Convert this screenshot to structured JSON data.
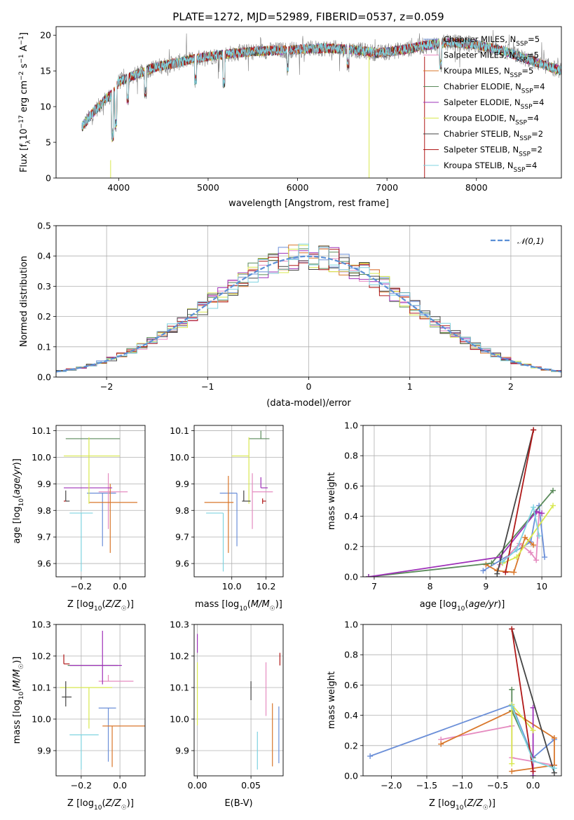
{
  "title": "PLATE=1272, MJD=52989, FIBERID=0537, z=0.059",
  "colors": {
    "Chabrier MILES": "#6b8fd8",
    "Salpeter MILES": "#e58bc0",
    "Kroupa MILES": "#d9772b",
    "Chabrier ELODIE": "#5a8a5a",
    "Salpeter ELODIE": "#9e30b8",
    "Kroupa ELODIE": "#d8e84e",
    "Chabrier STELIB": "#444444",
    "Salpeter STELIB": "#b01818",
    "Kroupa STELIB": "#7fd3e0",
    "data": "#808080",
    "normal": "#5b8fd6"
  },
  "spectrum": {
    "xlabel": "wavelength [Angstrom, rest frame]",
    "ylabel": "Flux [f_λ 10^-17 erg cm^-2 s^-1 A^-1]",
    "xlim": [
      3300,
      8950
    ],
    "ylim": [
      0,
      21.2
    ],
    "xticks": [
      4000,
      5000,
      6000,
      7000,
      8000
    ],
    "yticks": [
      0,
      5,
      10,
      15,
      20
    ],
    "legend": [
      {
        "model": "Chabrier MILES",
        "label": "Chabrier MILES, N",
        "sub": "SSP",
        "n": "=5"
      },
      {
        "model": "Salpeter MILES",
        "label": "Salpeter MILES, N",
        "sub": "SSP",
        "n": "=5"
      },
      {
        "model": "Kroupa MILES",
        "label": "Kroupa MILES, N",
        "sub": "SSP",
        "n": "=5"
      },
      {
        "model": "Chabrier ELODIE",
        "label": "Chabrier ELODIE, N",
        "sub": "SSP",
        "n": "=4"
      },
      {
        "model": "Salpeter ELODIE",
        "label": "Salpeter ELODIE, N",
        "sub": "SSP",
        "n": "=4"
      },
      {
        "model": "Kroupa ELODIE",
        "label": "Kroupa ELODIE, N",
        "sub": "SSP",
        "n": "=4"
      },
      {
        "model": "Chabrier STELIB",
        "label": "Chabrier STELIB, N",
        "sub": "SSP",
        "n": "=2"
      },
      {
        "model": "Salpeter STELIB",
        "label": "Salpeter STELIB, N",
        "sub": "SSP",
        "n": "=2"
      },
      {
        "model": "Kroupa STELIB",
        "label": "Kroupa STELIB, N",
        "sub": "SSP",
        "n": "=4"
      }
    ],
    "continuum": [
      [
        3580,
        7.0
      ],
      [
        3700,
        9.0
      ],
      [
        3850,
        11.0
      ],
      [
        3950,
        12.0
      ],
      [
        4000,
        13.5
      ],
      [
        4200,
        14.5
      ],
      [
        4400,
        15.5
      ],
      [
        4600,
        16.0
      ],
      [
        4800,
        16.6
      ],
      [
        5000,
        17.0
      ],
      [
        5300,
        17.5
      ],
      [
        5600,
        17.8
      ],
      [
        6000,
        18.0
      ],
      [
        6300,
        18.2
      ],
      [
        6600,
        18.0
      ],
      [
        6900,
        17.5
      ],
      [
        7200,
        18.0
      ],
      [
        7400,
        18.5
      ],
      [
        7700,
        19.0
      ],
      [
        8000,
        18.7
      ],
      [
        8300,
        17.8
      ],
      [
        8600,
        16.5
      ],
      [
        8950,
        15.0
      ]
    ]
  },
  "residuals": {
    "xlabel": "(data-model)/error",
    "ylabel": "Normed distribution",
    "xlim": [
      -2.5,
      2.5
    ],
    "ylim": [
      0,
      0.5
    ],
    "xticks": [
      -2,
      -1,
      0,
      1,
      2
    ],
    "yticks": [
      0.0,
      0.1,
      0.2,
      0.3,
      0.4,
      0.5
    ],
    "bin_width": 0.1,
    "legend": "𝒩(0,1)"
  },
  "chart_data": [
    {
      "type": "line",
      "title": "PLATE=1272, MJD=52989, FIBERID=0537, z=0.059",
      "xlabel": "wavelength [Angstrom, rest frame]",
      "ylabel": "Flux [fλ10^-17 erg cm^-2 s^-1 A^-1]",
      "xlim": [
        3300,
        8950
      ],
      "ylim": [
        0,
        21.2
      ],
      "note_series": [
        "data",
        "Chabrier MILES, NSSP=5",
        "Salpeter MILES, NSSP=5",
        "Kroupa MILES, NSSP=5",
        "Chabrier ELODIE, NSSP=4",
        "Salpeter ELODIE, NSSP=4",
        "Kroupa ELODIE, NSSP=4",
        "Chabrier STELIB, NSSP=2",
        "Salpeter STELIB, NSSP=2",
        "Kroupa STELIB, NSSP=4"
      ]
    },
    {
      "type": "line",
      "xlabel": "(data-model)/error",
      "ylabel": "Normed distribution",
      "xlim": [
        -2.5,
        2.5
      ],
      "ylim": [
        0,
        0.5
      ],
      "series": [
        {
          "name": "𝒩(0,1)",
          "function": "gaussian mean 0 sigma 1"
        }
      ]
    },
    {
      "type": "scatter",
      "xlabel": "Z [log10(Z/Z☉)]",
      "ylabel": "age [log10(age/yr)]",
      "xlim": [
        -0.33,
        0.13
      ],
      "ylim": [
        9.55,
        10.12
      ],
      "xticks": [
        -0.2,
        0.0
      ],
      "yticks": [
        9.6,
        9.7,
        9.8,
        9.9,
        10.0,
        10.1
      ],
      "series": [
        {
          "model": "Chabrier MILES",
          "x": -0.09,
          "y": 9.865,
          "xerr": [
            0.08,
            0.07
          ],
          "yerr": [
            0.2,
            0.0
          ]
        },
        {
          "model": "Salpeter MILES",
          "x": -0.06,
          "y": 9.87,
          "xerr": [
            0.05,
            0.1
          ],
          "yerr": [
            0.14,
            0.07
          ]
        },
        {
          "model": "Kroupa MILES",
          "x": -0.05,
          "y": 9.83,
          "xerr": [
            0.11,
            0.14
          ],
          "yerr": [
            0.19,
            0.07
          ]
        },
        {
          "model": "Chabrier ELODIE",
          "x": -0.28,
          "y": 10.07,
          "xerr": [
            0.0,
            0.28
          ],
          "yerr": [
            0.0,
            0.0
          ]
        },
        {
          "model": "Salpeter ELODIE",
          "x": -0.08,
          "y": 9.885,
          "xerr": [
            0.21,
            0.04
          ],
          "yerr": [
            0.0,
            0.0
          ]
        },
        {
          "model": "Kroupa ELODIE",
          "x": -0.16,
          "y": 10.005,
          "xerr": [
            0.13,
            0.16
          ],
          "yerr": [
            0.18,
            0.07
          ]
        },
        {
          "model": "Chabrier STELIB",
          "x": -0.28,
          "y": 9.835,
          "xerr": [
            0.0,
            0.02
          ],
          "yerr": [
            0.0,
            0.04
          ]
        },
        {
          "model": "Salpeter STELIB",
          "x": -0.29,
          "y": 9.835,
          "xerr": [
            0.0,
            0.01
          ],
          "yerr": [
            0.0,
            0.0
          ]
        },
        {
          "model": "Kroupa STELIB",
          "x": -0.2,
          "y": 9.79,
          "xerr": [
            0.06,
            0.06
          ],
          "yerr": [
            0.22,
            0.0
          ]
        }
      ]
    },
    {
      "type": "scatter",
      "xlabel": "mass [log10(M/M☉)]",
      "ylabel": "",
      "xlim": [
        9.78,
        10.3
      ],
      "ylim": [
        9.55,
        10.12
      ],
      "xticks": [
        10.0,
        10.2
      ],
      "yticks": [
        9.6,
        9.7,
        9.8,
        9.9,
        10.0,
        10.1
      ],
      "series": [
        {
          "model": "Chabrier MILES",
          "x": 10.03,
          "y": 9.865,
          "xerr": [
            0.1,
            0.0
          ],
          "yerr": [
            0.2,
            0.0
          ]
        },
        {
          "model": "Salpeter MILES",
          "x": 10.12,
          "y": 9.87,
          "xerr": [
            0.0,
            0.12
          ],
          "yerr": [
            0.14,
            0.07
          ]
        },
        {
          "model": "Kroupa MILES",
          "x": 9.98,
          "y": 9.83,
          "xerr": [
            0.14,
            0.03
          ],
          "yerr": [
            0.19,
            0.1
          ]
        },
        {
          "model": "Chabrier ELODIE",
          "x": 10.17,
          "y": 10.07,
          "xerr": [
            0.07,
            0.05
          ],
          "yerr": [
            0.0,
            0.03
          ]
        },
        {
          "model": "Salpeter ELODIE",
          "x": 10.17,
          "y": 9.885,
          "xerr": [
            0.0,
            0.04
          ],
          "yerr": [
            0.0,
            0.04
          ]
        },
        {
          "model": "Kroupa ELODIE",
          "x": 10.1,
          "y": 10.005,
          "xerr": [
            0.1,
            0.0
          ],
          "yerr": [
            0.18,
            0.07
          ]
        },
        {
          "model": "Chabrier STELIB",
          "x": 10.07,
          "y": 9.835,
          "xerr": [
            0.01,
            0.04
          ],
          "yerr": [
            0.0,
            0.04
          ]
        },
        {
          "model": "Salpeter STELIB",
          "x": 10.18,
          "y": 9.835,
          "xerr": [
            0.0,
            0.02
          ],
          "yerr": [
            0.01,
            0.01
          ]
        },
        {
          "model": "Kroupa STELIB",
          "x": 9.95,
          "y": 9.79,
          "xerr": [
            0.1,
            0.0
          ],
          "yerr": [
            0.22,
            0.0
          ]
        }
      ]
    },
    {
      "type": "line",
      "xlabel": "age [log10(age/yr)]",
      "ylabel": "mass weight",
      "xlim": [
        6.8,
        10.35
      ],
      "ylim": [
        0,
        1
      ],
      "xticks": [
        7,
        8,
        9,
        10
      ],
      "yticks": [
        0.0,
        0.2,
        0.4,
        0.6,
        0.8,
        1.0
      ],
      "series": [
        {
          "model": "Chabrier MILES",
          "x": [
            8.95,
            9.8,
            9.9,
            9.95,
            10.05
          ],
          "y": [
            0.04,
            0.23,
            0.43,
            0.47,
            0.13
          ]
        },
        {
          "model": "Salpeter MILES",
          "x": [
            9.25,
            9.6,
            9.8,
            9.9,
            9.95
          ],
          "y": [
            0.08,
            0.22,
            0.16,
            0.11,
            0.42
          ]
        },
        {
          "model": "Kroupa MILES",
          "x": [
            9.0,
            9.2,
            9.5,
            9.7,
            9.85
          ],
          "y": [
            0.08,
            0.04,
            0.03,
            0.26,
            0.21
          ]
        },
        {
          "model": "Chabrier ELODIE",
          "x": [
            6.9,
            9.1,
            10.2
          ],
          "y": [
            0.0,
            0.09,
            0.57
          ]
        },
        {
          "model": "Salpeter ELODIE",
          "x": [
            6.9,
            9.25,
            9.9,
            10.0
          ],
          "y": [
            0.0,
            0.13,
            0.43,
            0.42
          ]
        },
        {
          "model": "Kroupa ELODIE",
          "x": [
            9.3,
            9.55,
            10.2
          ],
          "y": [
            0.09,
            0.13,
            0.47
          ]
        },
        {
          "model": "Chabrier STELIB",
          "x": [
            9.2,
            9.85
          ],
          "y": [
            0.02,
            0.97
          ]
        },
        {
          "model": "Salpeter STELIB",
          "x": [
            9.35,
            9.85
          ],
          "y": [
            0.03,
            0.97
          ]
        },
        {
          "model": "Kroupa STELIB",
          "x": [
            9.3,
            9.55,
            9.85,
            9.95
          ],
          "y": [
            0.1,
            0.18,
            0.46,
            0.27
          ]
        }
      ]
    },
    {
      "type": "scatter",
      "xlabel": "Z [log10(Z/Z☉)]",
      "ylabel": "mass [log10(M/M☉)]",
      "xlim": [
        -0.33,
        0.13
      ],
      "ylim": [
        9.82,
        10.3
      ],
      "xticks": [
        -0.2,
        0.0
      ],
      "yticks": [
        9.9,
        10.0,
        10.1,
        10.2,
        10.3
      ],
      "series": [
        {
          "model": "Chabrier MILES",
          "x": -0.06,
          "y": 10.035,
          "xerr": [
            0.05,
            0.04
          ],
          "yerr": [
            0.17,
            0.0
          ]
        },
        {
          "model": "Salpeter MILES",
          "x": -0.06,
          "y": 10.12,
          "xerr": [
            0.05,
            0.13
          ],
          "yerr": [
            0.0,
            0.02
          ]
        },
        {
          "model": "Kroupa MILES",
          "x": -0.04,
          "y": 9.978,
          "xerr": [
            0.05,
            0.17
          ],
          "yerr": [
            0.13,
            0.0
          ]
        },
        {
          "model": "Chabrier ELODIE",
          "x": -0.27,
          "y": 10.17,
          "xerr": [
            0.0,
            0.26
          ],
          "yerr": [
            0.0,
            0.0
          ]
        },
        {
          "model": "Salpeter ELODIE",
          "x": -0.09,
          "y": 10.17,
          "xerr": [
            0.17,
            0.1
          ],
          "yerr": [
            0.06,
            0.11
          ]
        },
        {
          "model": "Kroupa ELODIE",
          "x": -0.16,
          "y": 10.1,
          "xerr": [
            0.15,
            0.12
          ],
          "yerr": [
            0.13,
            0.0
          ]
        },
        {
          "model": "Chabrier STELIB",
          "x": -0.28,
          "y": 10.07,
          "xerr": [
            0.02,
            0.03
          ],
          "yerr": [
            0.03,
            0.05
          ]
        },
        {
          "model": "Salpeter STELIB",
          "x": -0.29,
          "y": 10.175,
          "xerr": [
            0.0,
            0.03
          ],
          "yerr": [
            0.0,
            0.03
          ]
        },
        {
          "model": "Kroupa STELIB",
          "x": -0.2,
          "y": 9.95,
          "xerr": [
            0.06,
            0.09
          ],
          "yerr": [
            0.11,
            0.0
          ]
        }
      ]
    },
    {
      "type": "scatter",
      "xlabel": "E(B-V)",
      "ylabel": "",
      "xlim": [
        -0.003,
        0.08
      ],
      "ylim": [
        9.82,
        10.3
      ],
      "xticks": [
        0.0,
        0.05
      ],
      "yticks": [
        9.9,
        10.0,
        10.1,
        10.2,
        10.3
      ],
      "series": [
        {
          "model": "Chabrier MILES",
          "x": 0.076,
          "y": 9.95,
          "yerr": [
            0.09,
            0.09
          ]
        },
        {
          "model": "Salpeter MILES",
          "x": 0.064,
          "y": 10.09,
          "yerr": [
            0.08,
            0.09
          ]
        },
        {
          "model": "Kroupa MILES",
          "x": 0.07,
          "y": 9.95,
          "yerr": [
            0.1,
            0.1
          ]
        },
        {
          "model": "Salpeter ELODIE",
          "x": 0.0,
          "y": 10.23,
          "yerr": [
            0.02,
            0.04
          ]
        },
        {
          "model": "Kroupa ELODIE",
          "x": 0.0,
          "y": 10.08,
          "yerr": [
            0.1,
            0.1
          ]
        },
        {
          "model": "Chabrier STELIB",
          "x": 0.05,
          "y": 10.09,
          "yerr": [
            0.03,
            0.03
          ]
        },
        {
          "model": "Salpeter STELIB",
          "x": 0.077,
          "y": 10.19,
          "yerr": [
            0.02,
            0.02
          ]
        },
        {
          "model": "Kroupa STELIB",
          "x": 0.056,
          "y": 9.9,
          "yerr": [
            0.06,
            0.06
          ]
        }
      ]
    },
    {
      "type": "line",
      "xlabel": "Z [log10(Z/Z☉)]",
      "ylabel": "mass weight",
      "xlim": [
        -2.4,
        0.4
      ],
      "ylim": [
        0,
        1
      ],
      "xticks": [
        -2.0,
        -1.5,
        -1.0,
        -0.5,
        0.0
      ],
      "yticks": [
        0.0,
        0.2,
        0.4,
        0.6,
        0.8,
        1.0
      ],
      "series": [
        {
          "model": "Chabrier MILES",
          "x": [
            -2.3,
            -0.3,
            0.0,
            0.3
          ],
          "y": [
            0.13,
            0.47,
            0.12,
            0.24
          ]
        },
        {
          "model": "Salpeter MILES",
          "x": [
            -1.3,
            -0.3,
            -0.3,
            0.3
          ],
          "y": [
            0.24,
            0.33,
            0.12,
            0.07
          ]
        },
        {
          "model": "Kroupa MILES",
          "x": [
            -1.3,
            -0.3,
            0.3,
            0.3,
            -0.3
          ],
          "y": [
            0.21,
            0.43,
            0.25,
            0.07,
            0.03
          ]
        },
        {
          "model": "Chabrier ELODIE",
          "x": [
            -0.3,
            -0.3,
            0.0
          ],
          "y": [
            0.57,
            0.43,
            0.12
          ]
        },
        {
          "model": "Salpeter ELODIE",
          "x": [
            0.0,
            0.0
          ],
          "y": [
            0.0,
            0.45
          ]
        },
        {
          "model": "Kroupa ELODIE",
          "x": [
            -0.3,
            -0.3,
            0.0
          ],
          "y": [
            0.08,
            0.47,
            0.3
          ]
        },
        {
          "model": "Chabrier STELIB",
          "x": [
            -0.3,
            0.3
          ],
          "y": [
            0.97,
            0.02
          ]
        },
        {
          "model": "Salpeter STELIB",
          "x": [
            -0.3,
            0.0
          ],
          "y": [
            0.97,
            0.03
          ]
        },
        {
          "model": "Kroupa STELIB",
          "x": [
            -0.3,
            0.0,
            0.3
          ],
          "y": [
            0.46,
            0.1,
            0.05
          ]
        }
      ]
    }
  ]
}
